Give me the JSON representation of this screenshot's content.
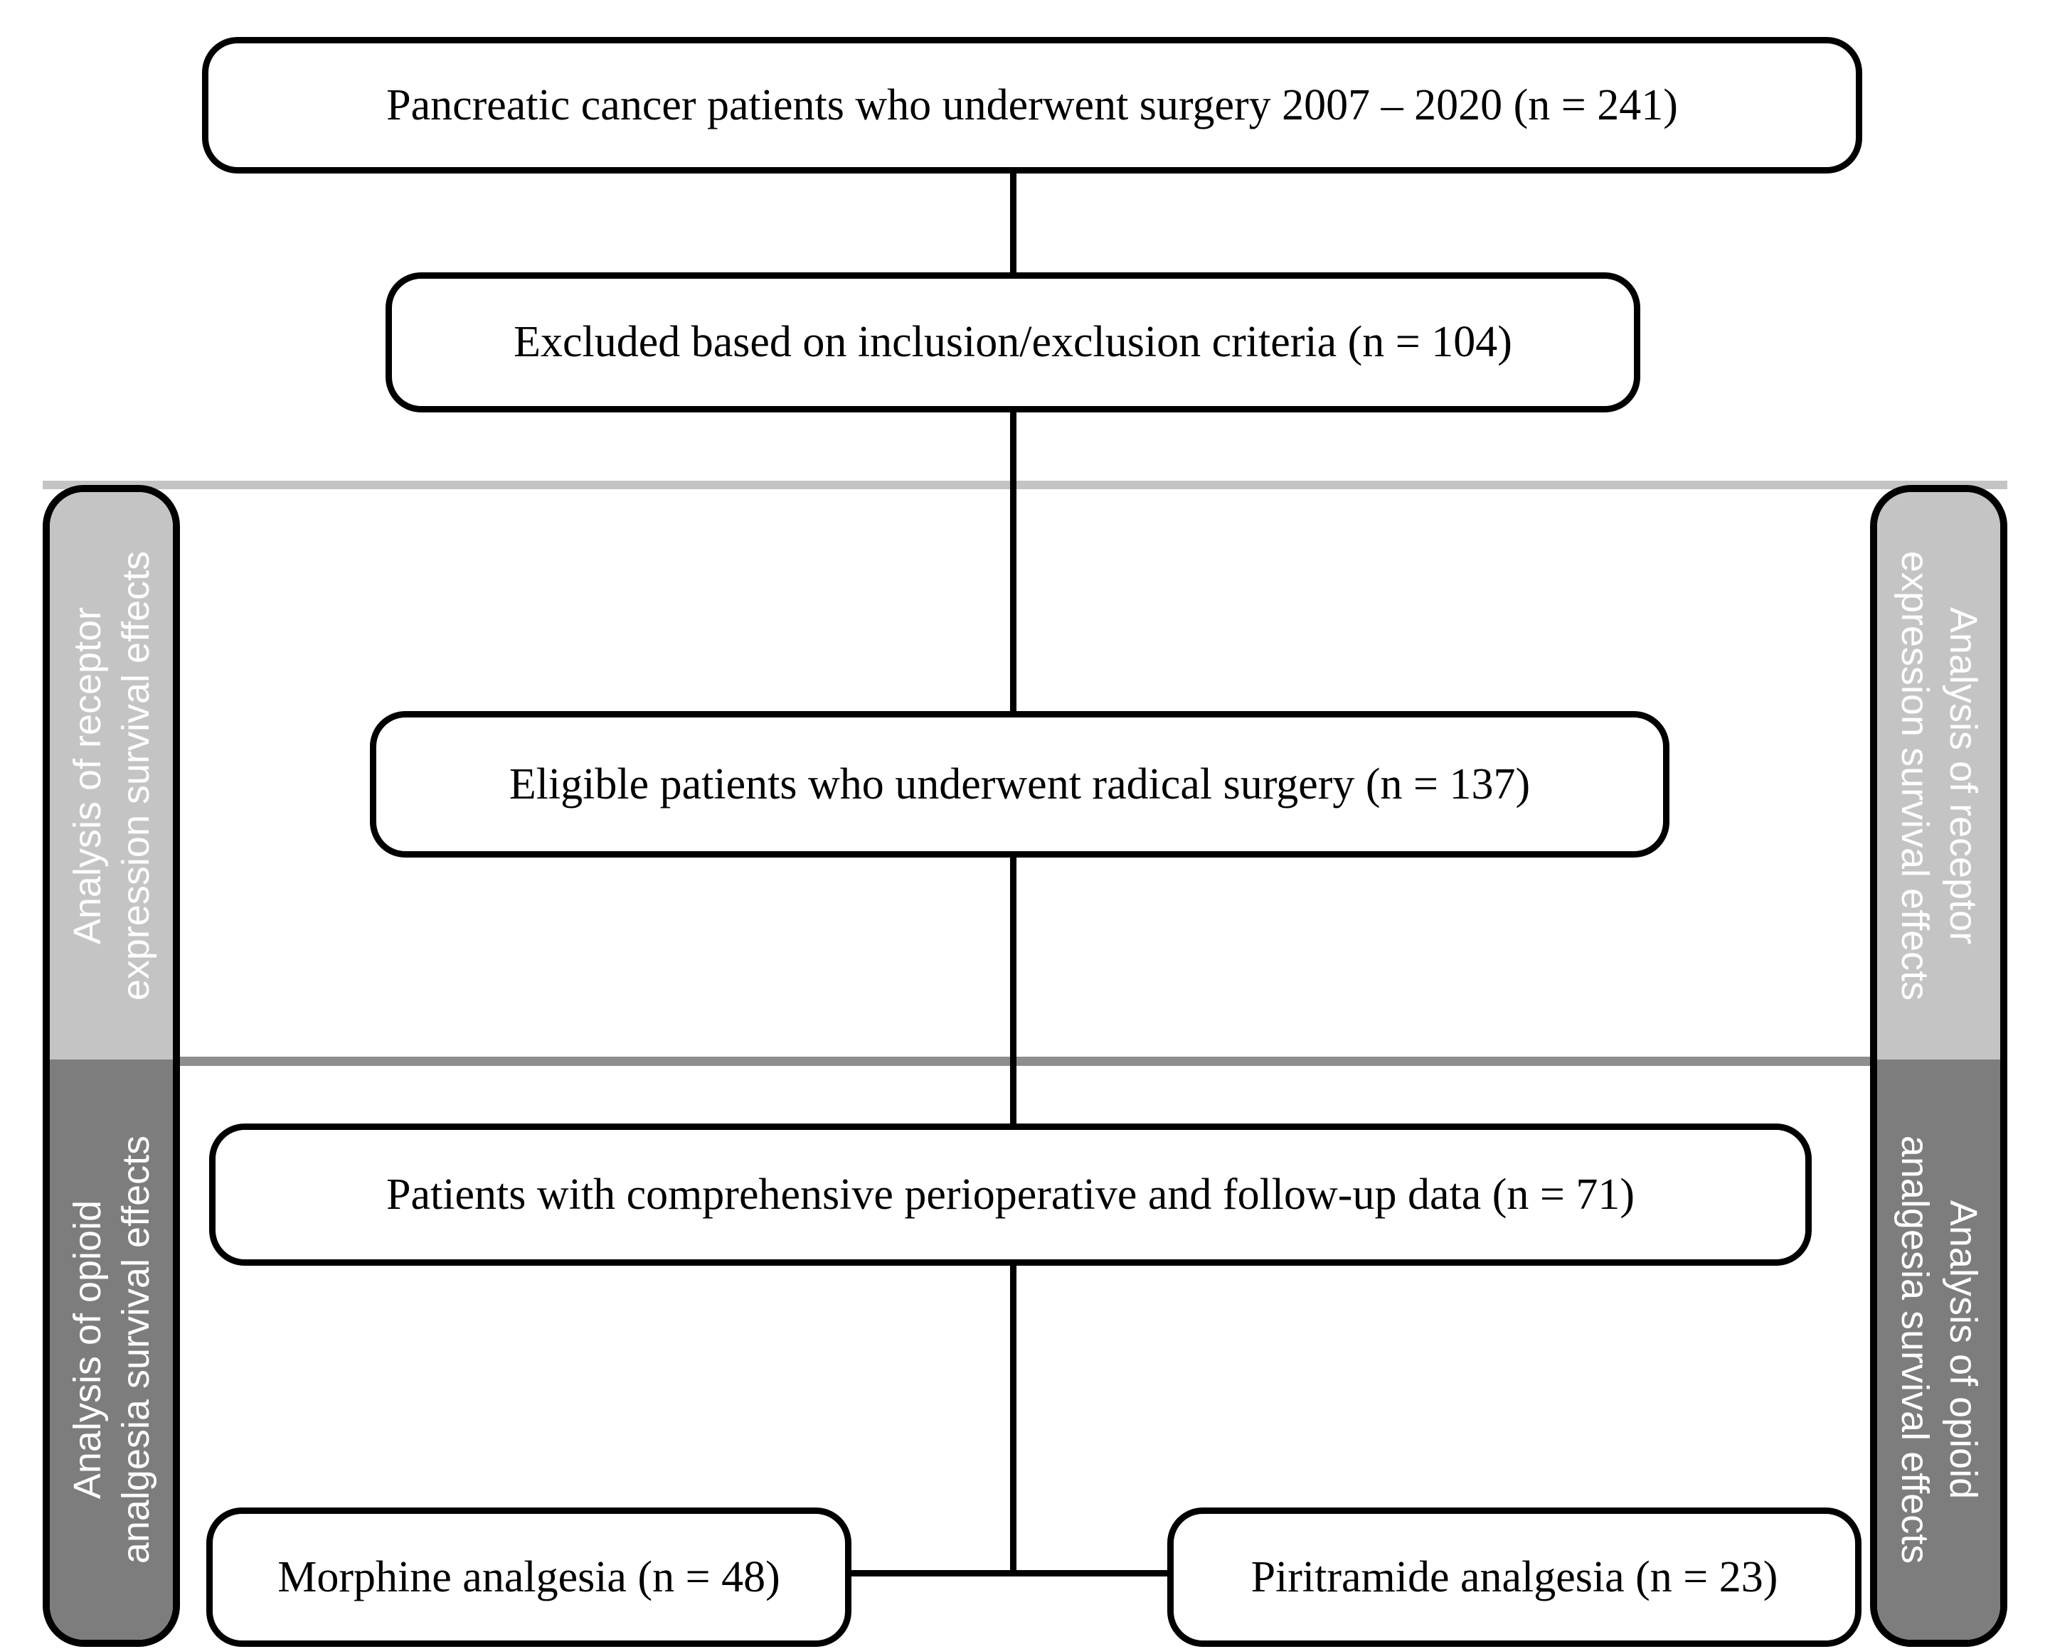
{
  "figure": {
    "type": "flowchart",
    "nodes": [
      {
        "id": "surgery-cohort",
        "label": "Pancreatic cancer patients who underwent surgery 2007 – 2020 (n = 241)",
        "n": 241
      },
      {
        "id": "excluded",
        "label": "Excluded based on inclusion/exclusion criteria (n = 104)",
        "n": 104
      },
      {
        "id": "eligible",
        "label": "Eligible patients who underwent radical surgery (n = 137)",
        "n": 137
      },
      {
        "id": "comprehensive-data",
        "label": "Patients with comprehensive perioperative and follow-up data (n = 71)",
        "n": 71
      },
      {
        "id": "morphine",
        "label": "Morphine analgesia (n = 48)",
        "n": 48
      },
      {
        "id": "piritramide",
        "label": "Piritramide analgesia (n = 23)",
        "n": 23
      }
    ],
    "sections": {
      "receptor_expression": {
        "line1": "Analysis of receptor",
        "line2": "expression survival effects"
      },
      "opioid_analgesia": {
        "line1": "Analysis of opioid",
        "line2": "analgesia survival effects"
      }
    },
    "colors": {
      "light_section": "#c4c4c4",
      "dark_section": "#7d7d7d",
      "top_boundary_line": "#c4c4c4",
      "middle_divider_line": "#8e8e8e",
      "box_border": "#000000",
      "box_background": "#ffffff",
      "box_text": "#000000",
      "sidebar_text": "#ffffff"
    }
  }
}
